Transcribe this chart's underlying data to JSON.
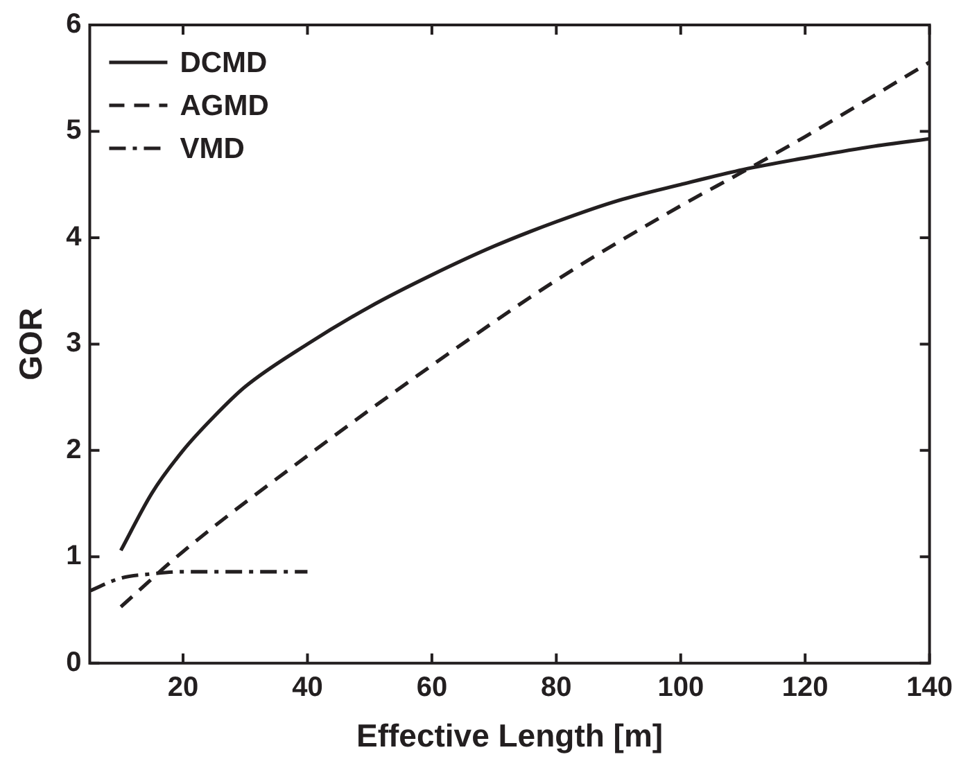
{
  "chart_data": {
    "type": "line",
    "xlabel": "Effective Length [m]",
    "ylabel": "GOR",
    "xlim": [
      5,
      140
    ],
    "xticks": [
      20,
      40,
      60,
      80,
      100,
      120,
      140
    ],
    "ylim": [
      0,
      6
    ],
    "yticks": [
      0,
      1,
      2,
      3,
      4,
      5,
      6
    ],
    "grid": false,
    "legend": "top left",
    "marker": "none",
    "series": [
      {
        "name": "DCMD",
        "color": "#231f20",
        "line_style": "solid",
        "x": [
          10,
          15,
          20,
          25,
          30,
          40,
          50,
          60,
          70,
          80,
          90,
          100,
          110,
          120,
          130,
          140
        ],
        "values": [
          1.06,
          1.6,
          2.0,
          2.32,
          2.6,
          3.0,
          3.35,
          3.65,
          3.92,
          4.15,
          4.35,
          4.5,
          4.64,
          4.75,
          4.85,
          4.93
        ]
      },
      {
        "name": "AGMD",
        "color": "#231f20",
        "line_style": "dashed",
        "x": [
          10,
          20,
          40,
          60,
          80,
          100,
          110,
          120,
          140
        ],
        "values": [
          0.53,
          1.05,
          1.95,
          2.8,
          3.6,
          4.3,
          4.62,
          4.95,
          5.65
        ]
      },
      {
        "name": "VMD",
        "color": "#231f20",
        "line_style": "dashdot",
        "x": [
          5,
          10,
          15,
          20,
          30,
          40
        ],
        "values": [
          0.68,
          0.8,
          0.84,
          0.86,
          0.86,
          0.86
        ]
      }
    ]
  }
}
